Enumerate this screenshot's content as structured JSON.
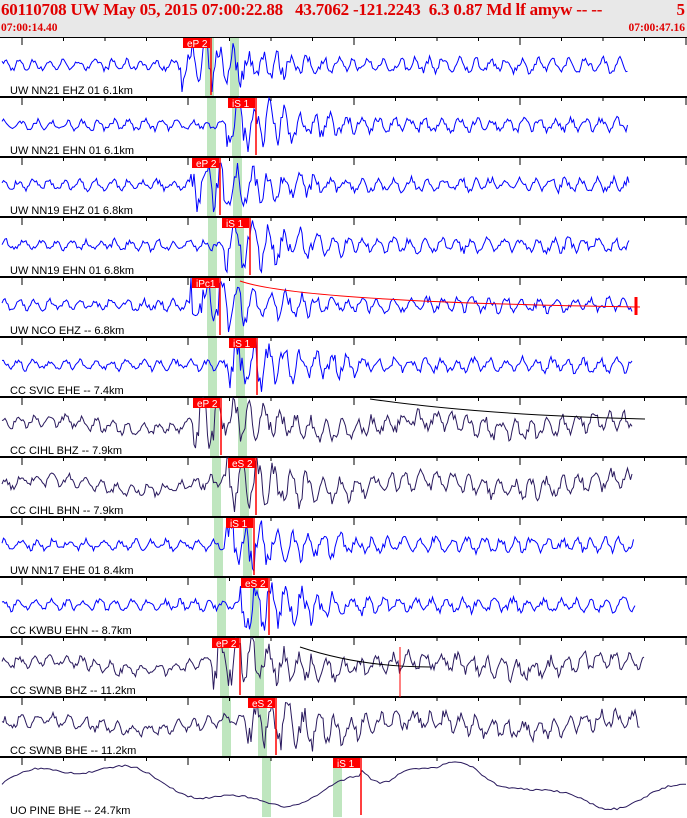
{
  "header": {
    "title": "60110708 UW May 05, 2015 07:00:22.88   43.7062 -121.2243  6.3 0.87 Md lf amyw -- --",
    "count": "5",
    "start_time": "07:00:14.40",
    "end_time": "07:00:47.16"
  },
  "colors": {
    "header_text": "#e00000",
    "header_bg": "#e8e8e8",
    "pick": "#ff0000",
    "window": "#bfe6bf",
    "trace_short_period": "#0000ff",
    "trace_broadband": "#2a1a5e"
  },
  "traces": [
    {
      "label": "UW NN21 EHZ 01 6.1km",
      "pick": "eP 2"
    },
    {
      "label": "UW NN21 EHN 01 6.1km",
      "pick": "iS 1"
    },
    {
      "label": "UW NN19 EHZ 01 6.8km",
      "pick": "eP 2"
    },
    {
      "label": "UW NN19 EHN 01 6.8km",
      "pick": "iS 1"
    },
    {
      "label": "UW NCO EHZ -- 6.8km",
      "pick": "iPc1"
    },
    {
      "label": "CC SVIC EHE -- 7.4km",
      "pick": "iS 1"
    },
    {
      "label": "CC CIHL BHZ -- 7.9km",
      "pick": "eP 2"
    },
    {
      "label": "CC CIHL BHN -- 7.9km",
      "pick": "eS 2"
    },
    {
      "label": "UW NN17 EHE 01 8.4km",
      "pick": "iS 1"
    },
    {
      "label": "CC KWBU EHN -- 8.7km",
      "pick": "eS 2"
    },
    {
      "label": "CC SWNB BHZ -- 11.2km",
      "pick": "eP 2"
    },
    {
      "label": "CC SWNB BHE -- 11.2km",
      "pick": "eS 2"
    },
    {
      "label": "UO PINE BHE -- 24.7km",
      "pick": "iS 1"
    }
  ]
}
